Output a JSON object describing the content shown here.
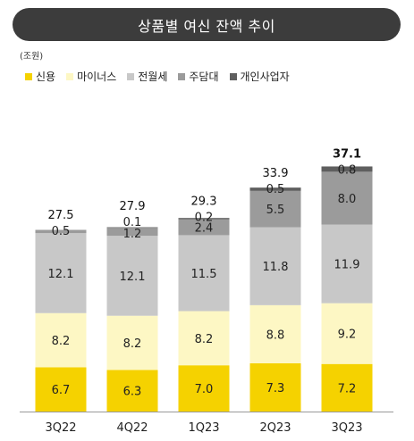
{
  "chart_data": {
    "type": "bar",
    "stacked": true,
    "title": "상품별 여신 잔액 추이",
    "unit": "(조원)",
    "categories": [
      "3Q22",
      "4Q22",
      "1Q23",
      "2Q23",
      "3Q23"
    ],
    "series": [
      {
        "name": "신용",
        "color": "#f5d200",
        "values": [
          6.7,
          6.3,
          7.0,
          7.3,
          7.2
        ]
      },
      {
        "name": "마이너스",
        "color": "#fdf7c4",
        "values": [
          8.2,
          8.2,
          8.2,
          8.8,
          9.2
        ]
      },
      {
        "name": "전월세",
        "color": "#c8c8c8",
        "values": [
          12.1,
          12.1,
          11.5,
          11.8,
          11.9
        ]
      },
      {
        "name": "주담대",
        "color": "#9b9b9b",
        "values": [
          0.5,
          1.2,
          2.4,
          5.5,
          8.0
        ]
      },
      {
        "name": "개인사업자",
        "color": "#5f5f5f",
        "values": [
          null,
          0.1,
          0.2,
          0.5,
          0.8
        ]
      }
    ],
    "totals": [
      "27.5",
      "27.9",
      "29.3",
      "33.9",
      "37.1"
    ],
    "legend_position": "top-left",
    "grid": false
  }
}
